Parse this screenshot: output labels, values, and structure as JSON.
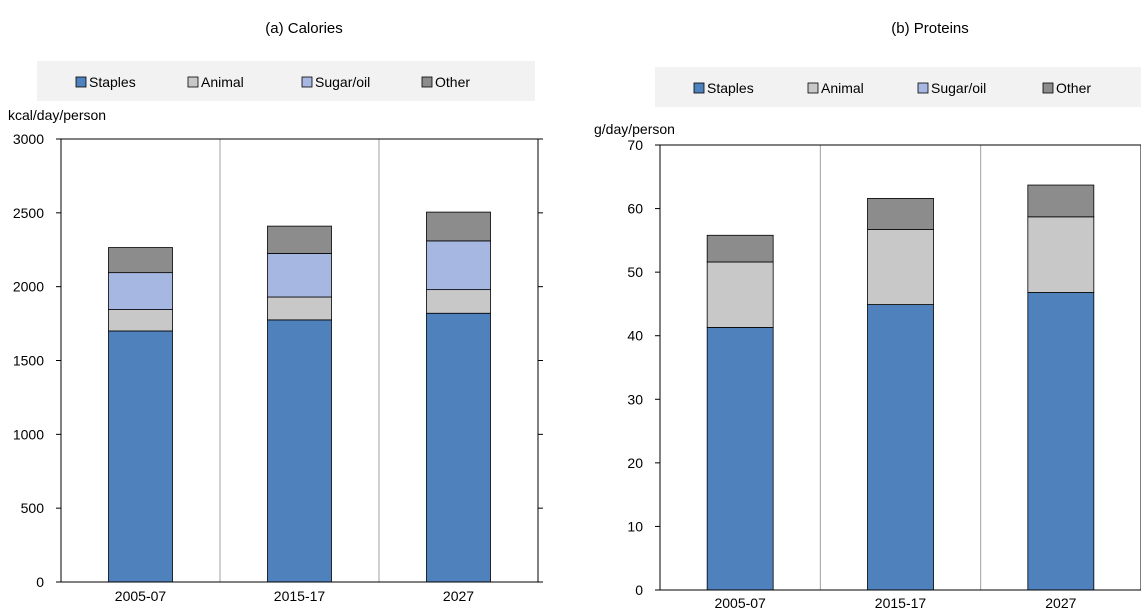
{
  "colors": {
    "Staples": "#4f81bd",
    "Animal": "#c8c8c8",
    "Sugar/oil": "#a6b8e2",
    "Other": "#8c8c8c"
  },
  "chart_data": [
    {
      "type": "bar",
      "stacked": true,
      "title": "(a) Calories",
      "ylabel": "kcal/day/person",
      "categories": [
        "2005-07",
        "2015-17",
        "2027"
      ],
      "yticks": [
        0,
        500,
        1000,
        1500,
        2000,
        2500,
        3000
      ],
      "ylim": [
        0,
        3000
      ],
      "grid": "vertical",
      "legend": "top",
      "series": [
        {
          "name": "Staples",
          "values": [
            1700,
            1775,
            1820
          ]
        },
        {
          "name": "Animal",
          "values": [
            145,
            155,
            160
          ]
        },
        {
          "name": "Sugar/oil",
          "values": [
            250,
            295,
            330
          ]
        },
        {
          "name": "Other",
          "values": [
            170,
            185,
            195
          ]
        }
      ]
    },
    {
      "type": "bar",
      "stacked": true,
      "title": "(b) Proteins",
      "ylabel": "g/day/person",
      "categories": [
        "2005-07",
        "2015-17",
        "2027"
      ],
      "yticks": [
        0,
        10,
        20,
        30,
        40,
        50,
        60,
        70
      ],
      "ylim": [
        0,
        70
      ],
      "grid": "vertical",
      "legend": "top",
      "series": [
        {
          "name": "Staples",
          "values": [
            41.3,
            44.9,
            46.8
          ]
        },
        {
          "name": "Animal",
          "values": [
            10.3,
            11.8,
            11.9
          ]
        },
        {
          "name": "Sugar/oil",
          "values": [
            0,
            0,
            0
          ]
        },
        {
          "name": "Other",
          "values": [
            4.2,
            4.9,
            5.0
          ]
        }
      ]
    }
  ]
}
